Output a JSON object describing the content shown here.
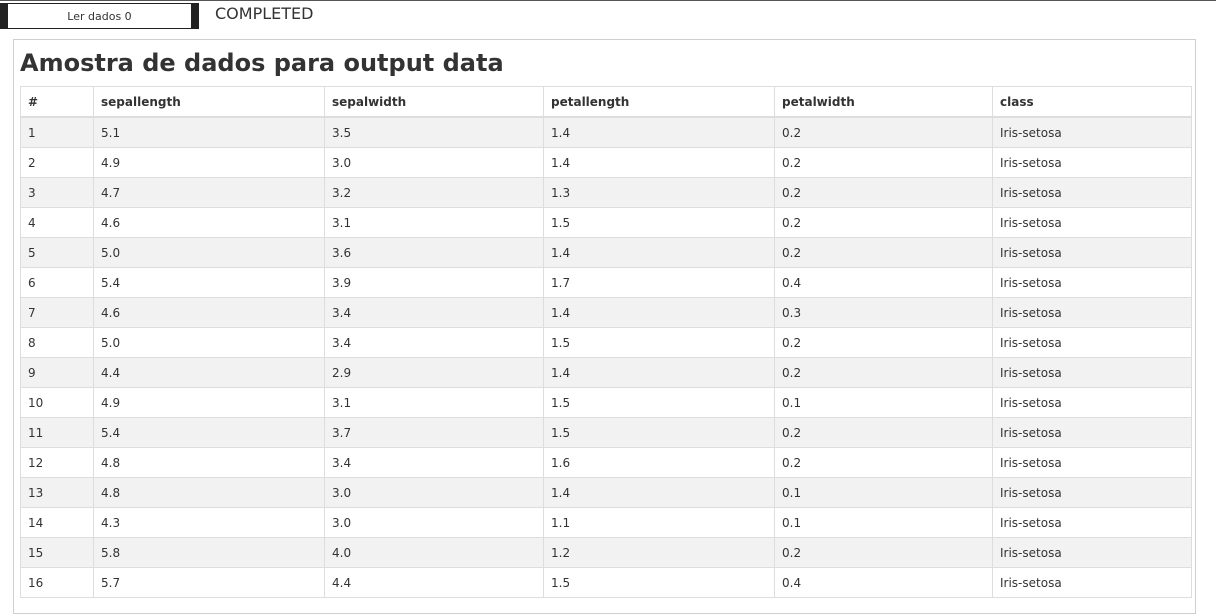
{
  "toolbar": {
    "read_button_label": "Ler dados 0",
    "status": "COMPLETED"
  },
  "panel": {
    "title": "Amostra de dados para output data"
  },
  "table": {
    "columns": [
      "#",
      "sepallength",
      "sepalwidth",
      "petallength",
      "petalwidth",
      "class"
    ],
    "rows": [
      [
        "1",
        "5.1",
        "3.5",
        "1.4",
        "0.2",
        "Iris-setosa"
      ],
      [
        "2",
        "4.9",
        "3.0",
        "1.4",
        "0.2",
        "Iris-setosa"
      ],
      [
        "3",
        "4.7",
        "3.2",
        "1.3",
        "0.2",
        "Iris-setosa"
      ],
      [
        "4",
        "4.6",
        "3.1",
        "1.5",
        "0.2",
        "Iris-setosa"
      ],
      [
        "5",
        "5.0",
        "3.6",
        "1.4",
        "0.2",
        "Iris-setosa"
      ],
      [
        "6",
        "5.4",
        "3.9",
        "1.7",
        "0.4",
        "Iris-setosa"
      ],
      [
        "7",
        "4.6",
        "3.4",
        "1.4",
        "0.3",
        "Iris-setosa"
      ],
      [
        "8",
        "5.0",
        "3.4",
        "1.5",
        "0.2",
        "Iris-setosa"
      ],
      [
        "9",
        "4.4",
        "2.9",
        "1.4",
        "0.2",
        "Iris-setosa"
      ],
      [
        "10",
        "4.9",
        "3.1",
        "1.5",
        "0.1",
        "Iris-setosa"
      ],
      [
        "11",
        "5.4",
        "3.7",
        "1.5",
        "0.2",
        "Iris-setosa"
      ],
      [
        "12",
        "4.8",
        "3.4",
        "1.6",
        "0.2",
        "Iris-setosa"
      ],
      [
        "13",
        "4.8",
        "3.0",
        "1.4",
        "0.1",
        "Iris-setosa"
      ],
      [
        "14",
        "4.3",
        "3.0",
        "1.1",
        "0.1",
        "Iris-setosa"
      ],
      [
        "15",
        "5.8",
        "4.0",
        "1.2",
        "0.2",
        "Iris-setosa"
      ],
      [
        "16",
        "5.7",
        "4.4",
        "1.5",
        "0.4",
        "Iris-setosa"
      ]
    ]
  }
}
